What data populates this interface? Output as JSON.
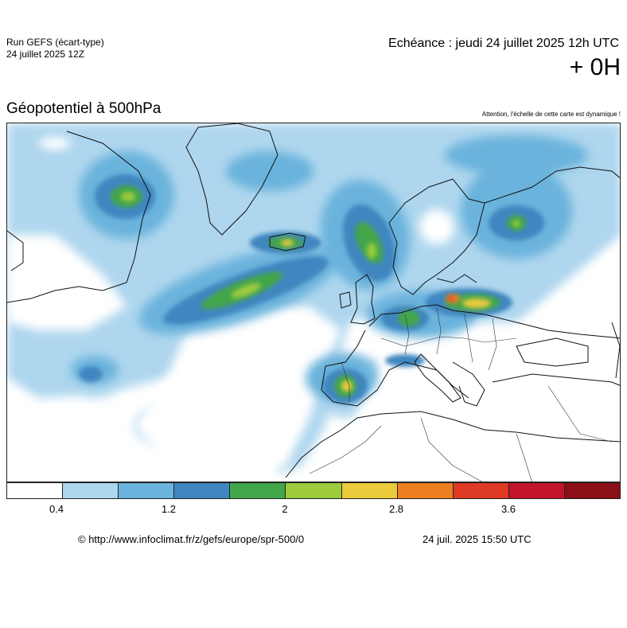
{
  "header": {
    "run_title": "Run GEFS (écart-type)",
    "run_date": "24 juillet 2025 12Z",
    "echeance": "Echéance : jeudi 24 juillet 2025 12h UTC",
    "lead_time": "+ 0H"
  },
  "map": {
    "parameter": "Géopotentiel à 500hPa",
    "warning": "Attention, l'échelle de cette carte est dynamique !",
    "region": "europe",
    "colors": {
      "land_outline": "#111111",
      "border_line": "#333333"
    }
  },
  "legend": {
    "colors": [
      "#ffffff",
      "#aed6ee",
      "#6ab3dc",
      "#3f86c0",
      "#42a64a",
      "#9ccb3c",
      "#ebcb3c",
      "#ee7e22",
      "#df3a25",
      "#c3142b",
      "#8b0f16"
    ],
    "ticks": [
      "0.4",
      "1.2",
      "2",
      "2.8",
      "3.6"
    ]
  },
  "footer": {
    "copyright": "© http://www.infoclimat.fr/z/gefs/europe/spr-500/0",
    "generated": "24 juil. 2025 15:50 UTC"
  }
}
